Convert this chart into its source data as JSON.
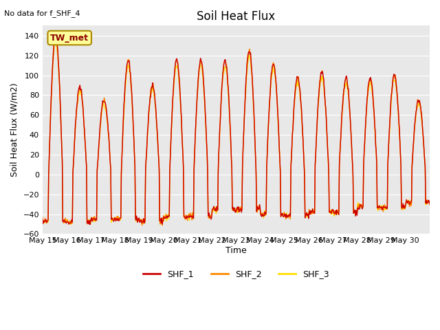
{
  "title": "Soil Heat Flux",
  "subtitle": "No data for f_SHF_4",
  "ylabel": "Soil Heat Flux (W/m2)",
  "xlabel": "Time",
  "ylim": [
    -60,
    150
  ],
  "yticks": [
    -60,
    -40,
    -20,
    0,
    20,
    40,
    60,
    80,
    100,
    120,
    140
  ],
  "bg_color": "#e8e8e8",
  "fig_color": "#ffffff",
  "legend_label": "TW_met",
  "series": [
    "SHF_1",
    "SHF_2",
    "SHF_3"
  ],
  "colors": [
    "#cc0000",
    "#ff8800",
    "#ffdd00"
  ],
  "linewidth": 1.0,
  "day_peaks": [
    88,
    140,
    88,
    75,
    115,
    90,
    115,
    115,
    115,
    125,
    112,
    98,
    103,
    97,
    97,
    101,
    75
  ],
  "day_troughs": [
    -43,
    -47,
    -48,
    -45,
    -45,
    -47,
    -43,
    -42,
    -35,
    -35,
    -40,
    -41,
    -38,
    -38,
    -33,
    -33,
    -28
  ],
  "tick_labels": [
    "May 15",
    "May 16",
    "May 17",
    "May 18",
    "May 19",
    "May 20",
    "May 21",
    "May 22",
    "May 23",
    "May 24",
    "May 25",
    "May 26",
    "May 27",
    "May 28",
    "May 29",
    "May 30"
  ]
}
